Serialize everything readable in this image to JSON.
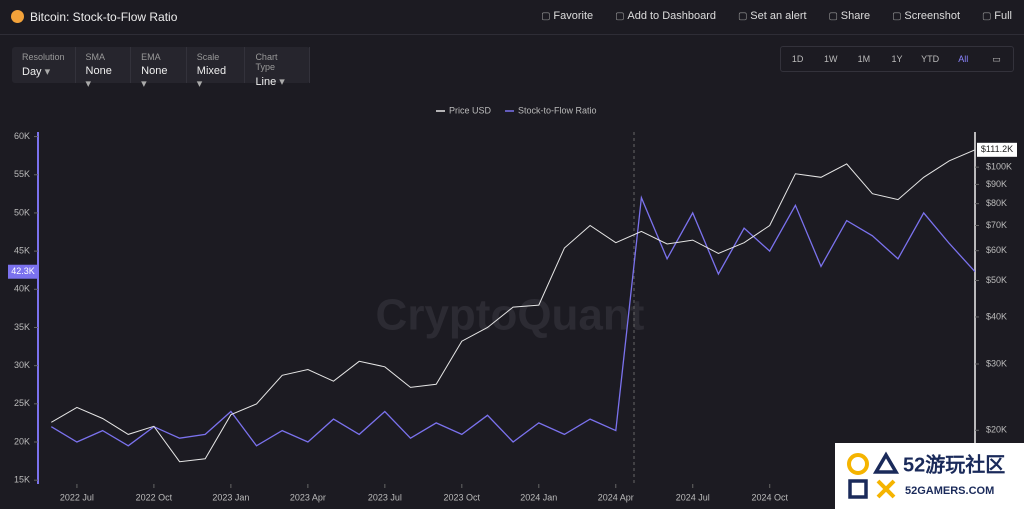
{
  "header": {
    "title": "Bitcoin: Stock-to-Flow Ratio",
    "actions": [
      "Favorite",
      "Add to Dashboard",
      "Set an alert",
      "Share",
      "Screenshot",
      "Full"
    ]
  },
  "controls": [
    {
      "label": "Resolution",
      "value": "Day"
    },
    {
      "label": "SMA",
      "value": "None"
    },
    {
      "label": "EMA",
      "value": "None"
    },
    {
      "label": "Scale",
      "value": "Mixed"
    },
    {
      "label": "Chart Type",
      "value": "Line"
    }
  ],
  "ranges": [
    "1D",
    "1W",
    "1M",
    "1Y",
    "YTD",
    "All"
  ],
  "active_range": "All",
  "watermark": "CryptoQuant",
  "overlay": {
    "title": "52游玩社区",
    "subtitle": "52GAMERS.COM"
  },
  "chart_data": {
    "type": "line",
    "x": [
      "2022-06",
      "2022-07",
      "2022-08",
      "2022-09",
      "2022-10",
      "2022-11",
      "2022-12",
      "2023-01",
      "2023-02",
      "2023-03",
      "2023-04",
      "2023-05",
      "2023-06",
      "2023-07",
      "2023-08",
      "2023-09",
      "2023-10",
      "2023-11",
      "2023-12",
      "2024-01",
      "2024-02",
      "2024-03",
      "2024-04",
      "2024-05",
      "2024-06",
      "2024-07",
      "2024-08",
      "2024-09",
      "2024-10",
      "2024-11",
      "2024-12",
      "2025-01",
      "2025-02",
      "2025-03",
      "2025-04",
      "2025-05",
      "2025-06"
    ],
    "xlim": [
      "2022-05",
      "2025-06"
    ],
    "xticks": [
      {
        "value": "2022-07",
        "label": "2022 Jul"
      },
      {
        "value": "2022-10",
        "label": "2022 Oct"
      },
      {
        "value": "2023-01",
        "label": "2023 Jan"
      },
      {
        "value": "2023-04",
        "label": "2023 Apr"
      },
      {
        "value": "2023-07",
        "label": "2023 Jul"
      },
      {
        "value": "2023-10",
        "label": "2023 Oct"
      },
      {
        "value": "2024-01",
        "label": "2024 Jan"
      },
      {
        "value": "2024-04",
        "label": "2024 Apr"
      },
      {
        "value": "2024-07",
        "label": "2024 Jul"
      },
      {
        "value": "2024-10",
        "label": "2024 Oct"
      }
    ],
    "ylim": [
      14500,
      60600
    ],
    "yticks": [
      {
        "value": 15000,
        "label": "15K"
      },
      {
        "value": 20000,
        "label": "20K"
      },
      {
        "value": 25000,
        "label": "25K"
      },
      {
        "value": 30000,
        "label": "30K"
      },
      {
        "value": 35000,
        "label": "35K"
      },
      {
        "value": 40000,
        "label": "40K"
      },
      {
        "value": 45000,
        "label": "45K"
      },
      {
        "value": 50000,
        "label": "50K"
      },
      {
        "value": 55000,
        "label": "55K"
      },
      {
        "value": 60000,
        "label": "60K"
      }
    ],
    "y2lim": [
      14400,
      124000
    ],
    "y2scale": "log",
    "y2ticks": [
      {
        "value": 20000,
        "label": "$20K"
      },
      {
        "value": 30000,
        "label": "$30K"
      },
      {
        "value": 40000,
        "label": "$40K"
      },
      {
        "value": 50000,
        "label": "$50K"
      },
      {
        "value": 60000,
        "label": "$60K"
      },
      {
        "value": 70000,
        "label": "$70K"
      },
      {
        "value": 80000,
        "label": "$80K"
      },
      {
        "value": 90000,
        "label": "$90K"
      },
      {
        "value": 100000,
        "label": "$100K"
      }
    ],
    "series": [
      {
        "name": "Price USD",
        "color": "#e6e6e6",
        "axis": "y2",
        "current_label": "$111.2K",
        "values": [
          21000,
          23000,
          21500,
          19500,
          20500,
          16500,
          16800,
          22000,
          23500,
          28000,
          29000,
          27000,
          30500,
          29500,
          26000,
          26500,
          34500,
          37500,
          42500,
          43000,
          61000,
          70000,
          63000,
          67500,
          62500,
          64000,
          59000,
          63000,
          70000,
          96000,
          94000,
          102000,
          85000,
          82000,
          94000,
          104000,
          111200
        ]
      },
      {
        "name": "Stock-to-Flow Ratio",
        "color": "#7b72ee",
        "current_label": "42.3K",
        "values": [
          22000,
          20000,
          21500,
          19500,
          22000,
          20500,
          21000,
          24000,
          19500,
          21500,
          20000,
          23000,
          21000,
          24000,
          20500,
          22500,
          21000,
          23500,
          20000,
          22500,
          21000,
          23000,
          21500,
          52000,
          44000,
          50000,
          42000,
          48000,
          45000,
          51000,
          43000,
          49000,
          47000,
          44000,
          50000,
          46000,
          42300
        ]
      }
    ]
  }
}
